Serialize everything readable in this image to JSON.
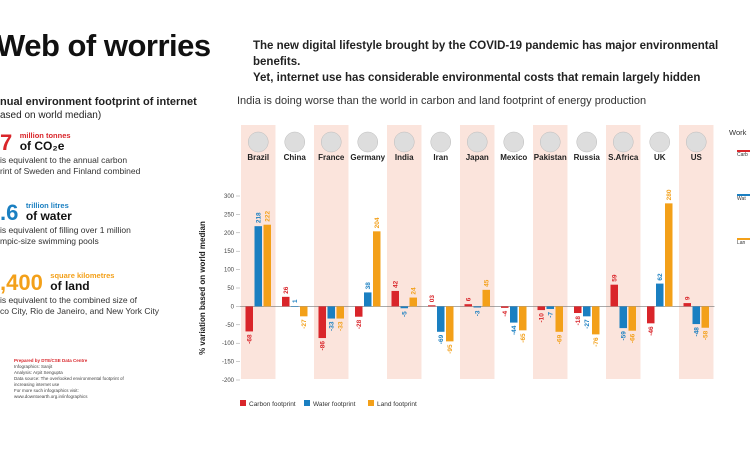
{
  "header": {
    "title": "Web of worries",
    "subtitle_line1": "The new digital lifestyle brought by the COVID-19 pandemic has major environmental benefits.",
    "subtitle_line2": "Yet, internet use has considerable environmental costs that remain largely hidden"
  },
  "left_panel": {
    "heading_line1": "nual environment footprint of internet",
    "heading_line2": "ased on world median)",
    "stats": [
      {
        "value": "7",
        "unit_small": "million tonnes",
        "unit": "of CO₂e",
        "desc1": "is equivalent to the annual carbon",
        "desc2": "rint of Sweden and Finland combined",
        "color": "#d9252a"
      },
      {
        "value": ".6",
        "unit_small": "trillion litres",
        "unit": "of water",
        "desc1": "is equivalent of filling over 1 million",
        "desc2": "mpic-size swimming pools",
        "color": "#1a7fc1"
      },
      {
        "value": ",400",
        "unit_small": "square kilometres",
        "unit": "of land",
        "desc1": "is equivalent to the combined size of",
        "desc2": "co City, Rio de Janeiro, and New York City",
        "color": "#f3a019"
      }
    ],
    "credits": {
      "prepared": "Prepared by DTE/CSE Data Centre",
      "infographics": "Infographics: Sanjit",
      "analysis": "Analysis: Arpit Sengupta",
      "source1": "Data source: The overlooked environmental footprint of",
      "source2": "increasing internet use",
      "more1": "For more such infographics visit:",
      "more2": "www.downtoearth.org.in/infographics"
    }
  },
  "chart_data": {
    "type": "bar",
    "title": "India is doing worse than the world in carbon and land footprint of energy production",
    "ylabel": "% variation based on world median",
    "ylim": [
      -200,
      300
    ],
    "yticks": [
      300,
      250,
      200,
      150,
      100,
      50,
      0,
      -50,
      -100,
      -150,
      -200
    ],
    "categories": [
      "Brazil",
      "China",
      "France",
      "Germany",
      "India",
      "Iran",
      "Japan",
      "Mexico",
      "Pakistan",
      "Russia",
      "S.Africa",
      "UK",
      "US"
    ],
    "series": [
      {
        "name": "Carbon footprint",
        "color": "#d9252a",
        "values": [
          -68,
          26,
          -86,
          -28,
          42,
          3,
          6,
          -4,
          -10,
          -18,
          59,
          -46,
          9
        ]
      },
      {
        "name": "Water footprint",
        "color": "#1a7fc1",
        "values": [
          218,
          1,
          -33,
          38,
          -5,
          -69,
          -3,
          -44,
          -7,
          -27,
          -59,
          62,
          -48
        ]
      },
      {
        "name": "Land footprint",
        "color": "#f3a019",
        "values": [
          222,
          -27,
          -33,
          204,
          24,
          -95,
          45,
          -65,
          -69,
          -76,
          -66,
          280,
          -58
        ]
      }
    ],
    "label_text": {
      "Carbon footprint": [
        "-68",
        "26",
        "-86",
        "-28",
        "42",
        "03",
        "6",
        "-4",
        "-10",
        "-18",
        "59",
        "-46",
        "9"
      ],
      "Water footprint": [
        "218",
        "1",
        "-33",
        "38",
        "-5",
        "-69",
        "-3",
        "-44",
        "-7",
        "-27",
        "-59",
        "62",
        "-48"
      ],
      "Land footprint": [
        "222",
        "-27",
        "-33",
        "204",
        "24",
        "-95",
        "45",
        "-65",
        "-69",
        "-76",
        "-66",
        "280",
        "-58"
      ]
    },
    "highlight_columns": [
      "Brazil",
      "France",
      "India",
      "Japan",
      "Pakistan",
      "S.Africa",
      "US"
    ],
    "highlight_color": "#fbe4dc",
    "legend_position": "bottom-left"
  },
  "right_panel": {
    "heading": "Work",
    "labels": [
      "Carb",
      "Wat",
      "Lan"
    ]
  }
}
